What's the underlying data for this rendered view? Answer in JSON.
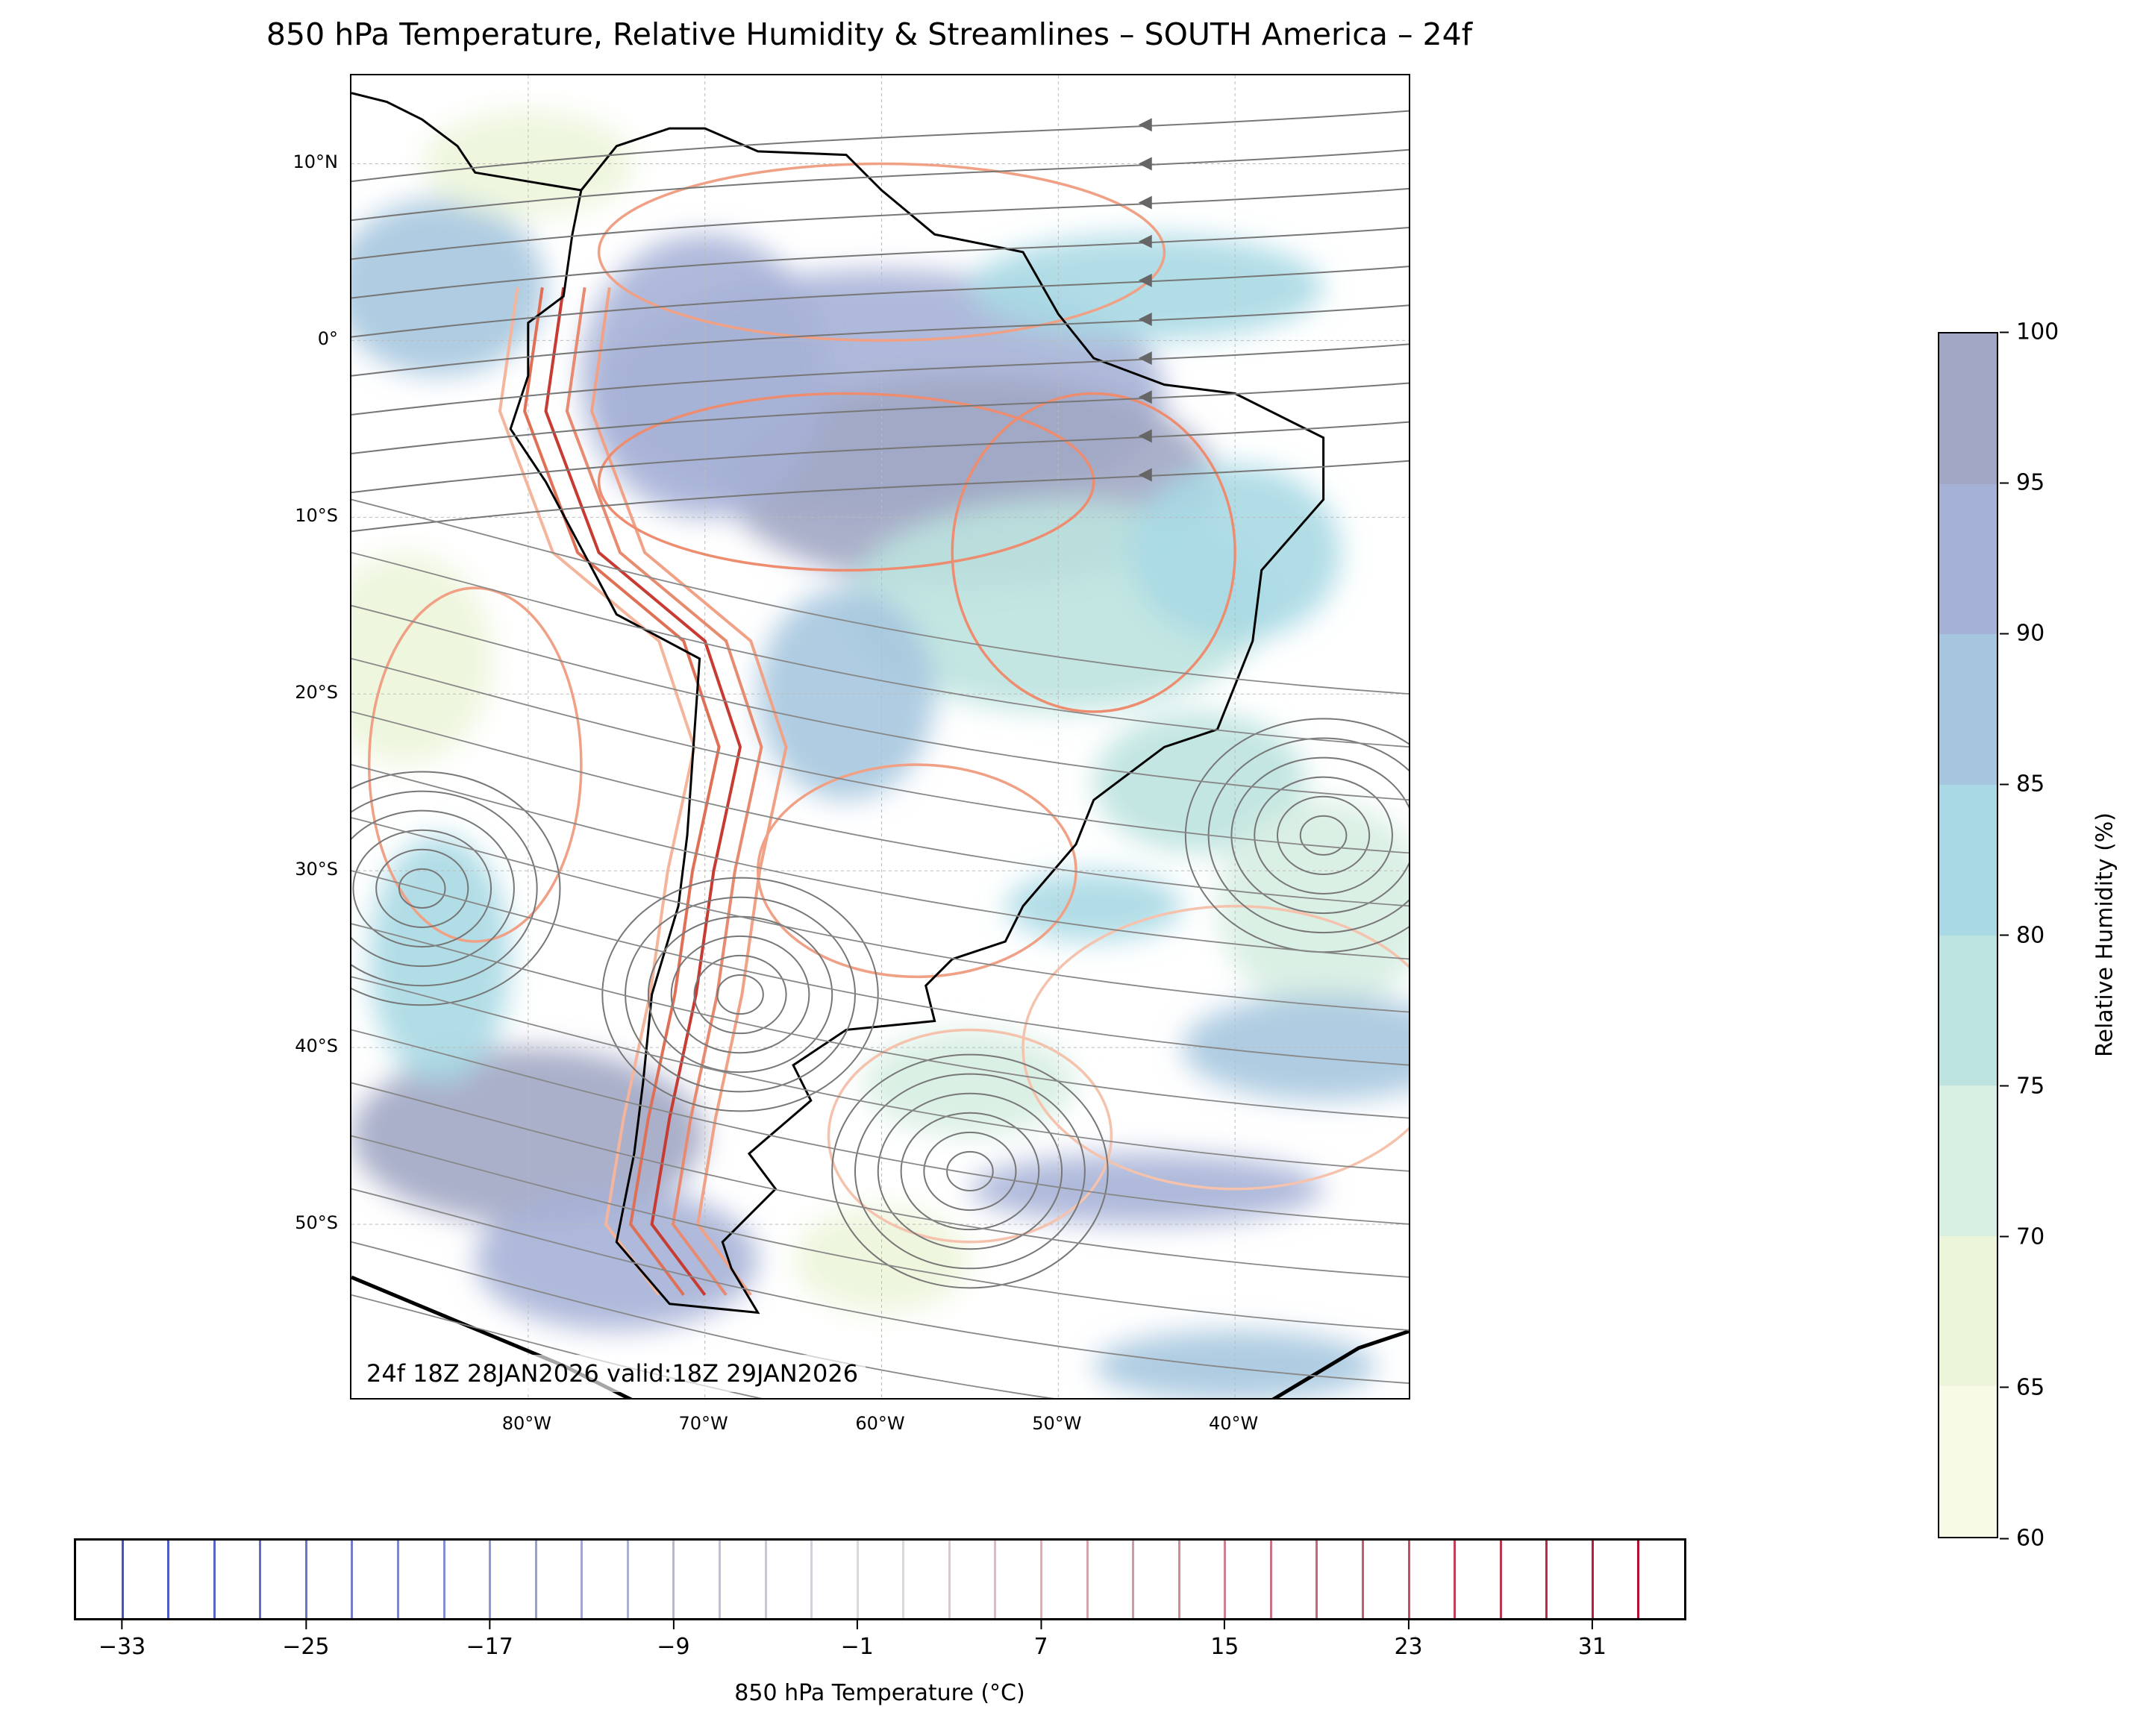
{
  "title": "850 hPa Temperature, Relative Humidity & Streamlines – SOUTH America – 24f",
  "map": {
    "annotation": "24f 18Z 28JAN2026 valid:18Z 29JAN2026",
    "extent_lon": [
      -90,
      -30
    ],
    "extent_lat": [
      -60,
      15
    ],
    "lat_ticks": [
      {
        "value": 10,
        "label": "10°N"
      },
      {
        "value": 0,
        "label": "0°"
      },
      {
        "value": -10,
        "label": "10°S"
      },
      {
        "value": -20,
        "label": "20°S"
      },
      {
        "value": -30,
        "label": "30°S"
      },
      {
        "value": -40,
        "label": "40°S"
      },
      {
        "value": -50,
        "label": "50°S"
      }
    ],
    "lon_ticks": [
      {
        "value": -80,
        "label": "80°W"
      },
      {
        "value": -70,
        "label": "70°W"
      },
      {
        "value": -60,
        "label": "60°W"
      },
      {
        "value": -50,
        "label": "50°W"
      },
      {
        "value": -40,
        "label": "40°W"
      }
    ]
  },
  "chart_data": {
    "type": "heatmap",
    "title": "850 hPa Temperature, Relative Humidity & Streamlines – SOUTH America – 24f",
    "rh_colorbar": {
      "label": "Relative Humidity (%)",
      "range": [
        60,
        100
      ],
      "levels": [
        60,
        65,
        70,
        75,
        80,
        85,
        90,
        95,
        100
      ],
      "tick_labels": [
        "60",
        "65",
        "70",
        "75",
        "80",
        "85",
        "90",
        "95",
        "100"
      ],
      "colors": [
        "#f7fbe6",
        "#ecf5da",
        "#d7eee2",
        "#bce3df",
        "#a9d9e4",
        "#a6c6df",
        "#a6b1d7",
        "#a1a7c4"
      ]
    },
    "temp_colorbar": {
      "label": "850 hPa Temperature (°C)",
      "range": [
        -35,
        35
      ],
      "contour_levels_start": -33,
      "contour_levels_end": 33,
      "contour_levels_step": 2,
      "ticks": [
        -33,
        -25,
        -17,
        -9,
        -1,
        7,
        15,
        23,
        31
      ],
      "tick_labels": [
        "−33",
        "−25",
        "−17",
        "−9",
        "−1",
        "7",
        "15",
        "23",
        "31"
      ]
    }
  }
}
